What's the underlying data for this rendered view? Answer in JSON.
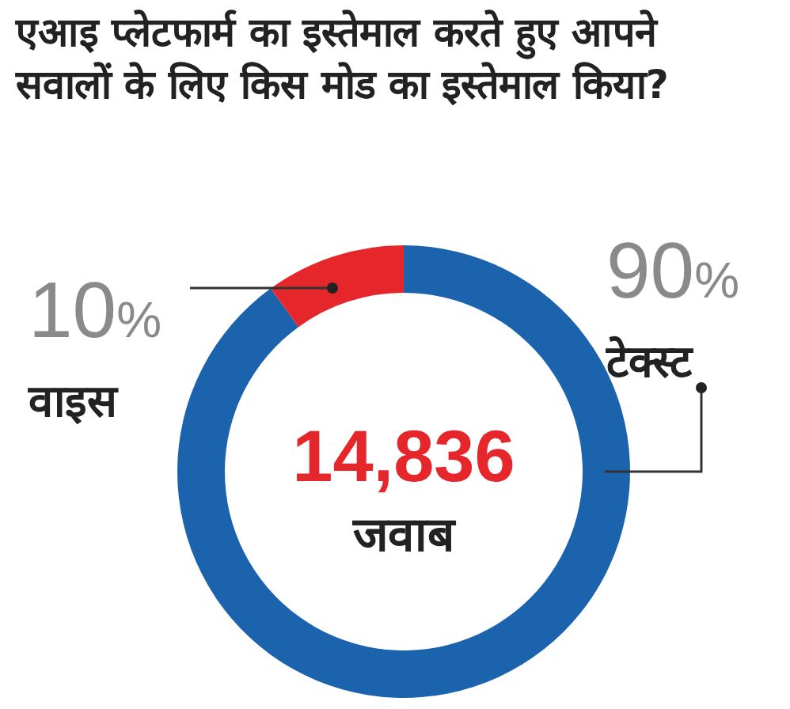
{
  "chart_data": {
    "type": "donut",
    "title": "एआइ प्लेटफार्म का इस्तेमाल करते हुए आपने सवालों के लिए किस मोड का इस्तेमाल किया?",
    "categories": [
      "टेक्स्ट",
      "वाइस"
    ],
    "values": [
      90,
      10
    ],
    "value_labels": [
      "90%",
      "10%"
    ],
    "colors": [
      "#1b63ad",
      "#e5262a"
    ],
    "annotations": [
      "14,836",
      "जवाब"
    ]
  }
}
